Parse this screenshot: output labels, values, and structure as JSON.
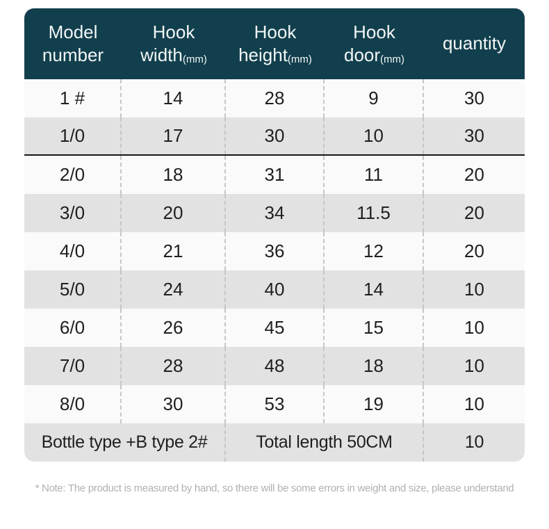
{
  "colors": {
    "header_bg": "#123f4d",
    "header_text": "#f2f6f6",
    "row_light": "#fafafa",
    "row_dark": "#e2e2e2",
    "body_text": "#1f1f1f",
    "dashed_divider": "#c6c6c6",
    "strong_divider": "#161616",
    "note_text": "#b0b0b0"
  },
  "table": {
    "columns": [
      {
        "id": "model",
        "title_lines": [
          "Model",
          "number"
        ],
        "unit": ""
      },
      {
        "id": "width",
        "title_lines": [
          "Hook",
          "width"
        ],
        "unit": "(mm)"
      },
      {
        "id": "height",
        "title_lines": [
          "Hook",
          "height"
        ],
        "unit": "(mm)"
      },
      {
        "id": "door",
        "title_lines": [
          "Hook",
          "door"
        ],
        "unit": "(mm)"
      },
      {
        "id": "quantity",
        "title_lines": [
          "quantity"
        ],
        "unit": ""
      }
    ],
    "rows": [
      {
        "model": "1 #",
        "width": "14",
        "height": "28",
        "door": "9",
        "quantity": "30"
      },
      {
        "model": "1/0",
        "width": "17",
        "height": "30",
        "door": "10",
        "quantity": "30"
      },
      {
        "model": "2/0",
        "width": "18",
        "height": "31",
        "door": "11",
        "quantity": "20"
      },
      {
        "model": "3/0",
        "width": "20",
        "height": "34",
        "door": "11.5",
        "quantity": "20"
      },
      {
        "model": "4/0",
        "width": "21",
        "height": "36",
        "door": "12",
        "quantity": "20"
      },
      {
        "model": "5/0",
        "width": "24",
        "height": "40",
        "door": "14",
        "quantity": "10"
      },
      {
        "model": "6/0",
        "width": "26",
        "height": "45",
        "door": "15",
        "quantity": "10"
      },
      {
        "model": "7/0",
        "width": "28",
        "height": "48",
        "door": "18",
        "quantity": "10"
      },
      {
        "model": "8/0",
        "width": "30",
        "height": "53",
        "door": "19",
        "quantity": "10"
      }
    ],
    "footer_row": {
      "left": "Bottle type +B type 2#",
      "middle": "Total length 50CM",
      "quantity": "10"
    }
  },
  "note": "* Note: The product is measured by hand, so there will be some errors in weight and size, please understand"
}
